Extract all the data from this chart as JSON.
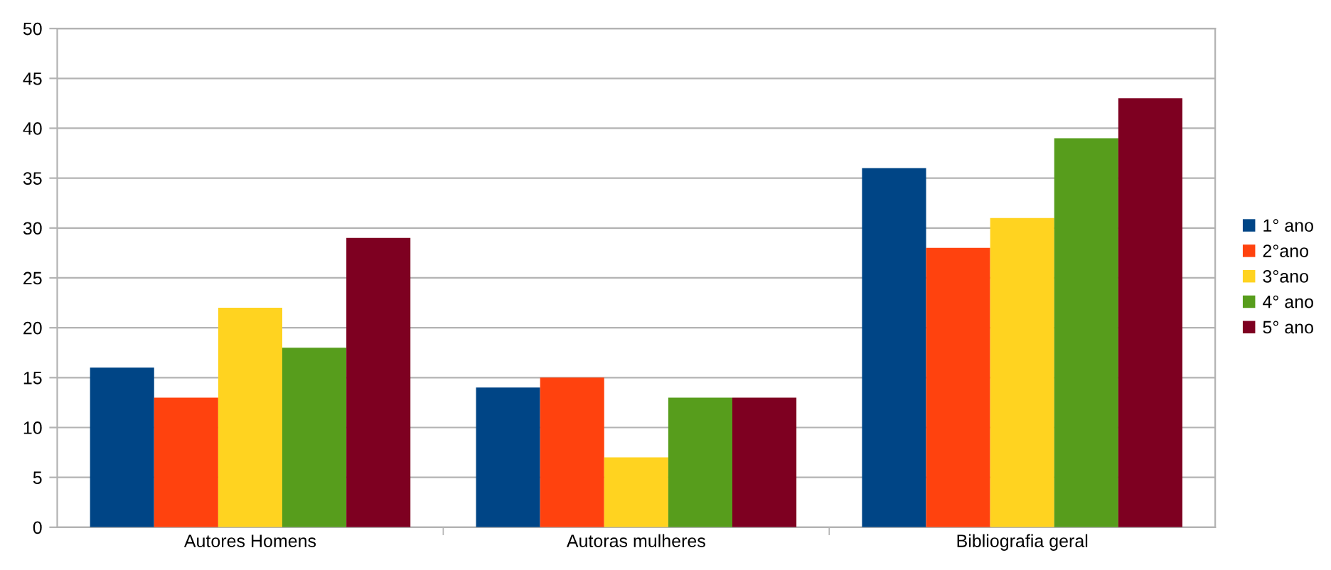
{
  "chart_data": {
    "type": "bar",
    "categories": [
      "Autores Homens",
      "Autoras mulheres",
      "Bibliografia geral"
    ],
    "series": [
      {
        "name": "1° ano",
        "color": "#004586",
        "values": [
          16,
          14,
          36
        ]
      },
      {
        "name": "2°ano",
        "color": "#ff420e",
        "values": [
          13,
          15,
          28
        ]
      },
      {
        "name": "3°ano",
        "color": "#ffd320",
        "values": [
          22,
          7,
          31
        ]
      },
      {
        "name": "4° ano",
        "color": "#579d1c",
        "values": [
          18,
          13,
          39
        ]
      },
      {
        "name": "5° ano",
        "color": "#7e0021",
        "values": [
          29,
          13,
          43
        ]
      }
    ],
    "ylim": [
      0,
      50
    ],
    "yticks": [
      0,
      5,
      10,
      15,
      20,
      25,
      30,
      35,
      40,
      45,
      50
    ],
    "grid": "y",
    "legend": "right"
  }
}
